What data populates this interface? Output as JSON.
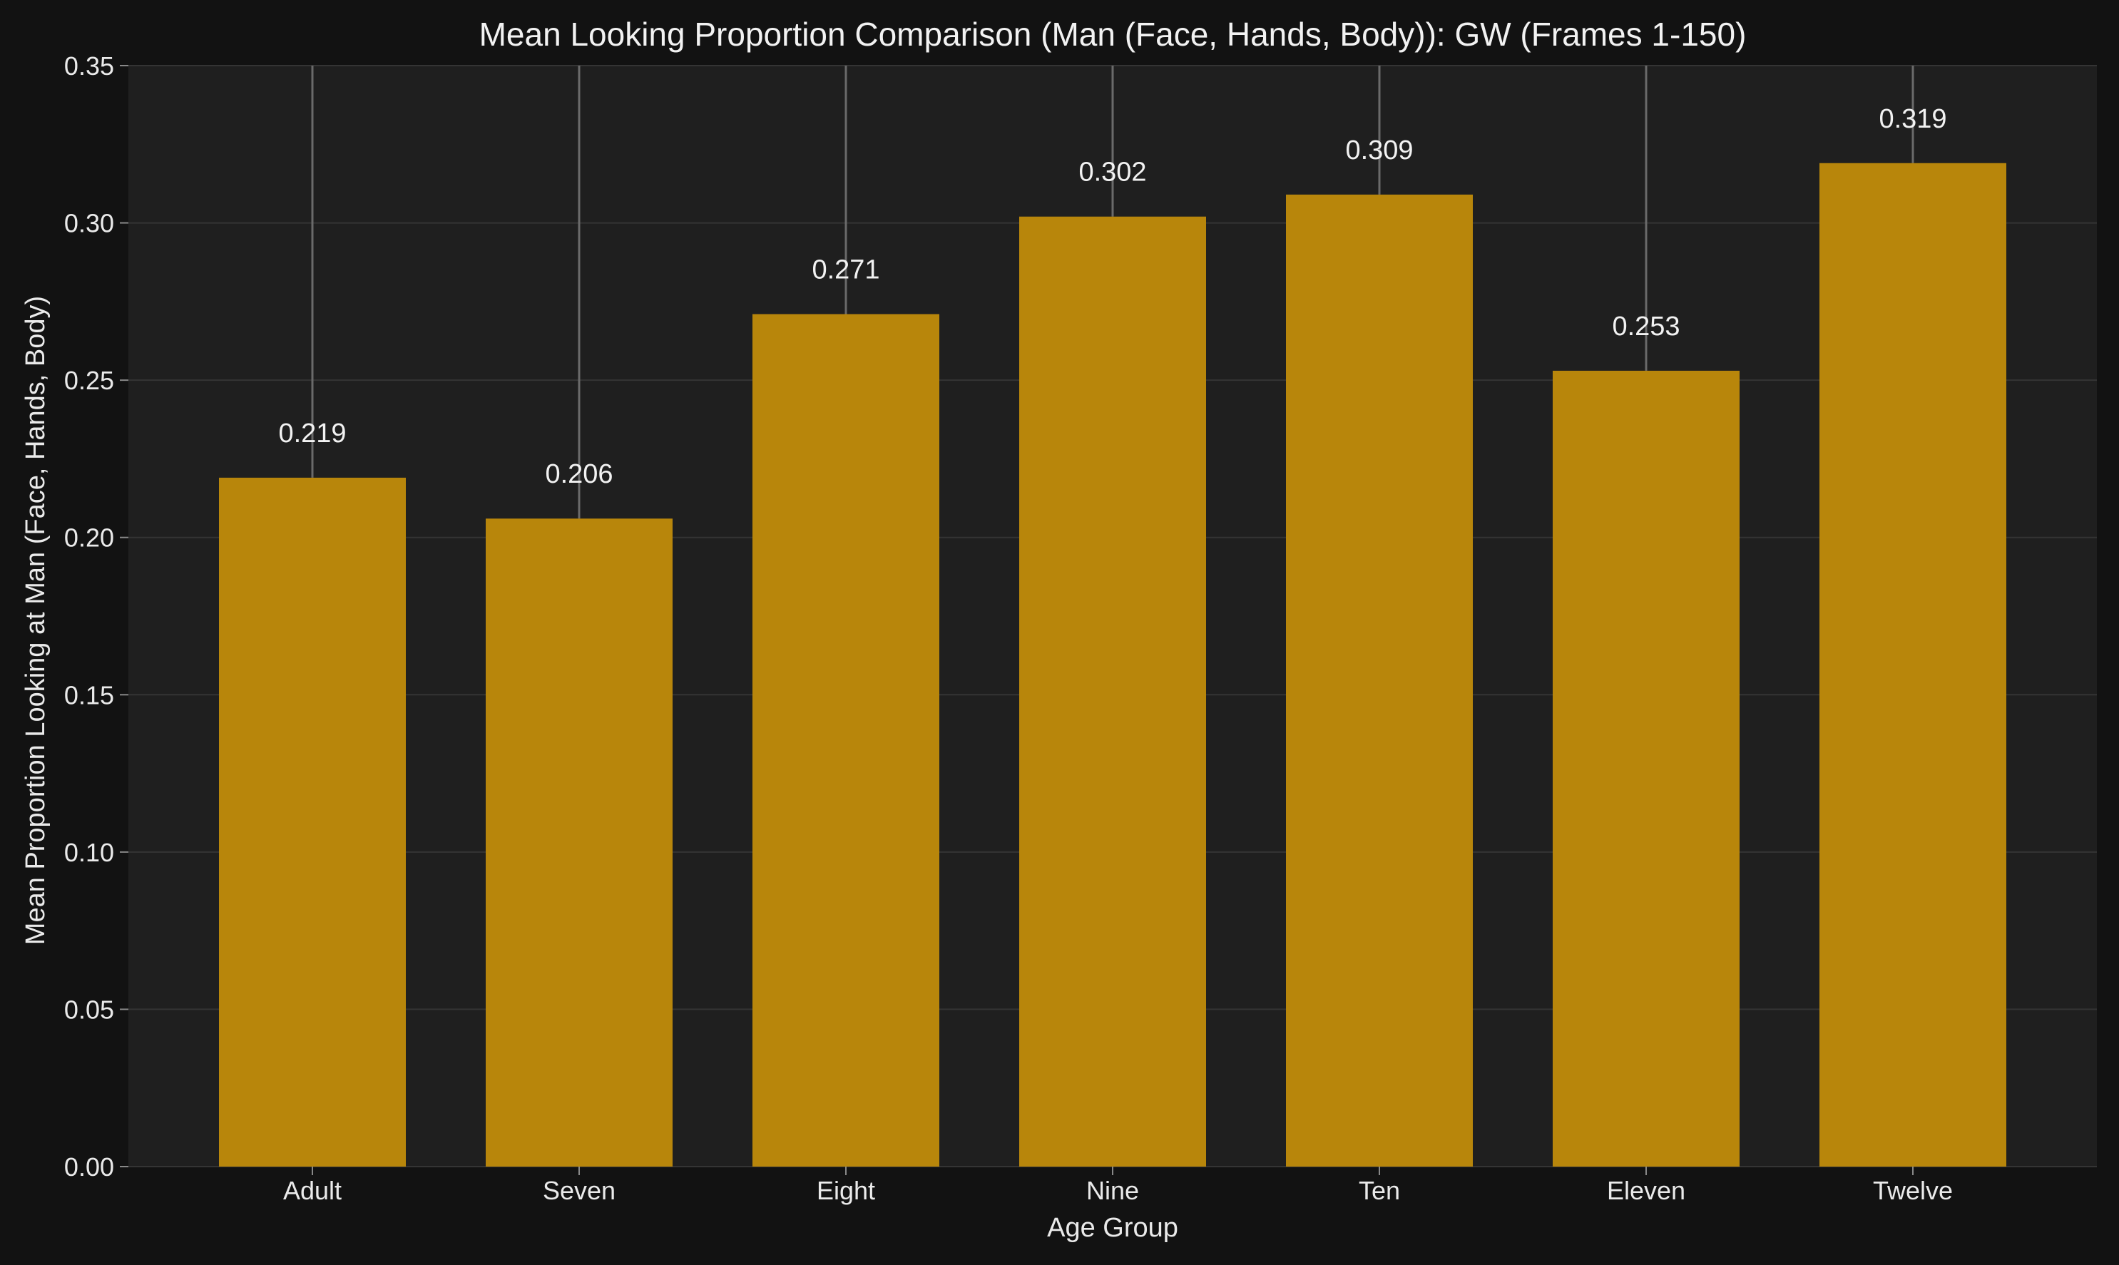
{
  "chart_data": {
    "type": "bar",
    "title": "Mean Looking Proportion Comparison (Man (Face, Hands, Body)): GW (Frames 1-150)",
    "xlabel": "Age Group",
    "ylabel": "Mean Proportion Looking at Man (Face, Hands, Body)",
    "categories": [
      "Adult",
      "Seven",
      "Eight",
      "Nine",
      "Ten",
      "Eleven",
      "Twelve"
    ],
    "values": [
      0.219,
      0.206,
      0.271,
      0.302,
      0.309,
      0.253,
      0.319
    ],
    "value_labels": [
      "0.219",
      "0.206",
      "0.271",
      "0.302",
      "0.309",
      "0.253",
      "0.319"
    ],
    "error_upper": [
      0.35,
      0.35,
      0.35,
      0.35,
      0.35,
      0.35,
      0.35
    ],
    "ylim": [
      0,
      0.35
    ],
    "yticks": [
      "0.00",
      "0.05",
      "0.10",
      "0.15",
      "0.20",
      "0.25",
      "0.30",
      "0.35"
    ],
    "grid": true,
    "bar_color": "#b8860b",
    "background": "#121212",
    "plot_background": "#1f1f1f"
  }
}
